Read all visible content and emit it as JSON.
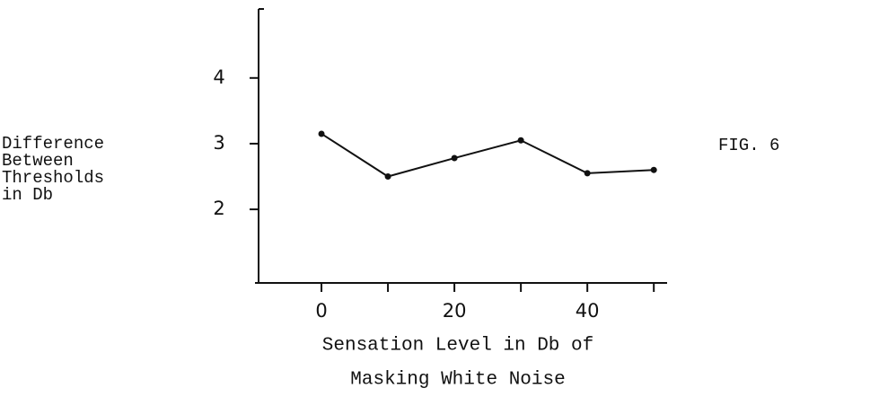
{
  "chart_data": {
    "type": "line",
    "ylabel": [
      "Difference",
      "Between",
      "Thresholds",
      "in Db"
    ],
    "xlabel": [
      "Sensation Level in Db of",
      "Masking White Noise"
    ],
    "annotation": "FIG. 6",
    "x": [
      0,
      10,
      20,
      30,
      40,
      50
    ],
    "series": [
      {
        "color": "#111111",
        "values": [
          3.15,
          2.5,
          2.78,
          3.05,
          2.55,
          2.6
        ]
      }
    ],
    "xlim": [
      -10,
      52
    ],
    "xticks": [
      0,
      20,
      40
    ],
    "xminor_ticks": [
      10,
      30,
      50
    ],
    "ylim": [
      0.88,
      5.05
    ],
    "yticks": [
      2,
      3,
      4
    ],
    "grid": false
  }
}
